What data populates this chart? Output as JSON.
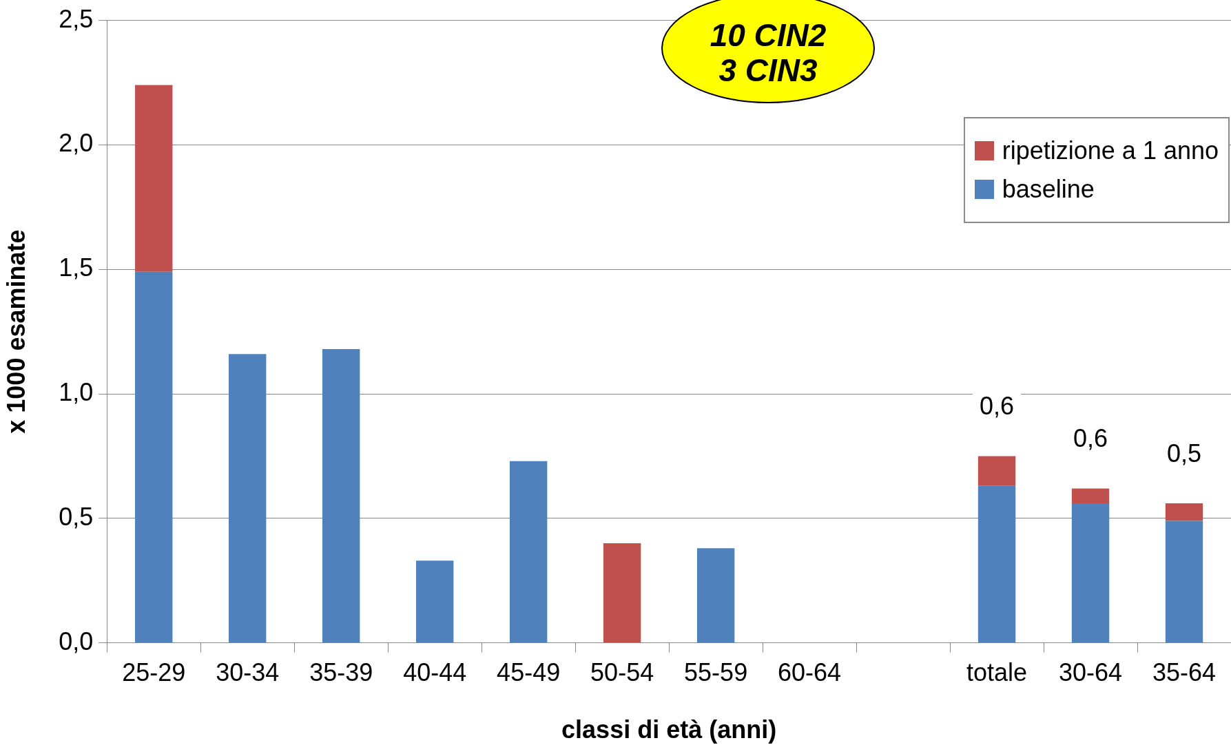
{
  "chart_data": {
    "type": "bar",
    "stacked": true,
    "categories": [
      "25-29",
      "30-34",
      "35-39",
      "40-44",
      "45-49",
      "50-54",
      "55-59",
      "60-64",
      null,
      "totale",
      "30-64",
      "35-64"
    ],
    "series": [
      {
        "name": "baseline",
        "color": "#4f81bd",
        "values": [
          1.49,
          1.16,
          1.18,
          0.33,
          0.73,
          0,
          0.38,
          0,
          null,
          0.63,
          0.56,
          0.49
        ]
      },
      {
        "name": "ripetizione a 1 anno",
        "color": "#c0504d",
        "values": [
          0.75,
          0,
          0,
          0,
          0,
          0.4,
          0,
          0,
          null,
          0.12,
          0.06,
          0.07
        ]
      }
    ],
    "totals": [
      null,
      null,
      null,
      null,
      null,
      null,
      null,
      null,
      null,
      "0,6",
      "0,6",
      "0,5"
    ],
    "ylim": [
      0,
      2.5
    ],
    "yticks": [
      {
        "value": 0,
        "label": "0,0"
      },
      {
        "value": 0.5,
        "label": "0,5"
      },
      {
        "value": 1,
        "label": "1,0"
      },
      {
        "value": 1.5,
        "label": "1,5"
      },
      {
        "value": 2,
        "label": "2,0"
      },
      {
        "value": 2.5,
        "label": "2,5"
      }
    ],
    "xlabel": "classi di età (anni)",
    "ylabel": "x 1000 esaminate",
    "annotations": [
      "10 CIN2\n3 CIN3"
    ],
    "grid": "y",
    "legend": "top right"
  }
}
